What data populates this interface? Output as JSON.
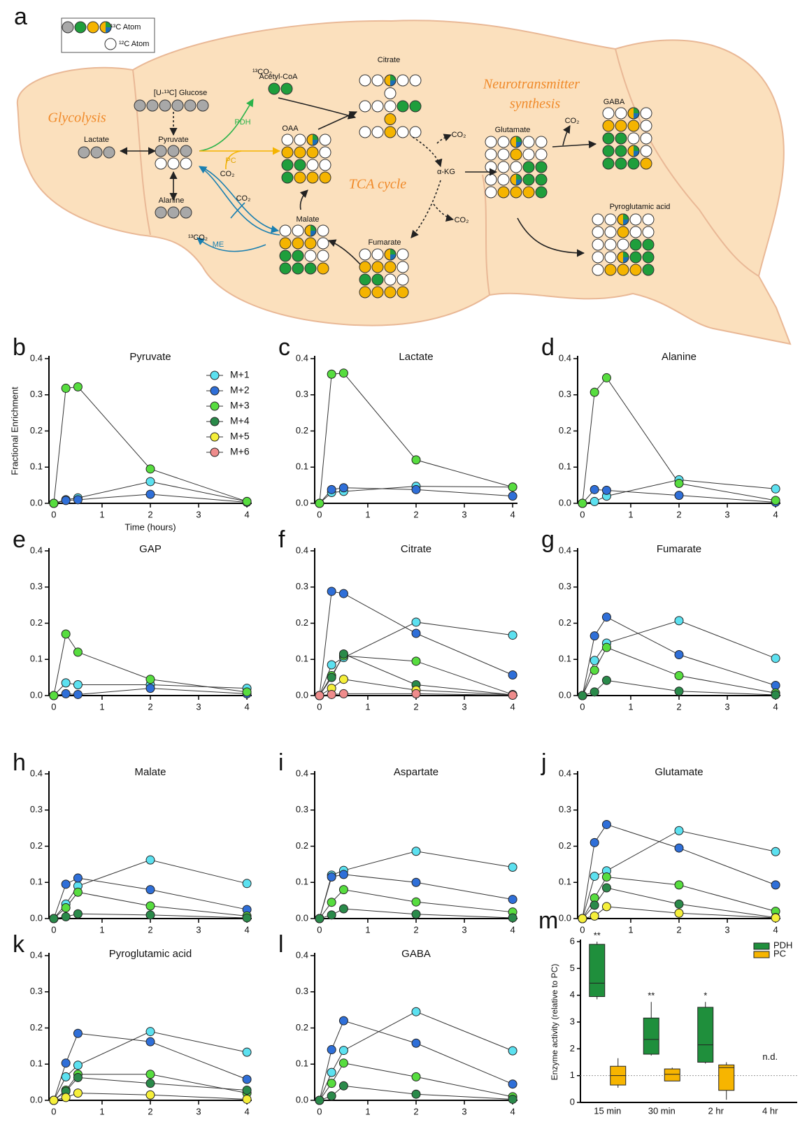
{
  "diagram": {
    "label": "a",
    "legend": {
      "labeled": "¹³C Atom",
      "unlabeled": "¹²C Atom"
    },
    "texts": [
      "Glycolysis",
      "[U-¹³C] Glucose",
      "Lactate",
      "Pyruvate",
      "Alanine",
      "PDH",
      "PC",
      "ME",
      "¹³CO₂",
      "¹³CO₂",
      "CO₂",
      "CO₂",
      "Acetyl-CoA",
      "OAA",
      "Citrate",
      "TCA cycle",
      "α-KG",
      "CO₂",
      "CO₂",
      "Malate",
      "Fumarate",
      "Glutamate",
      "Neurotransmitter",
      "synthesis",
      "CO₂",
      "GABA",
      "Pyroglutamic acid"
    ]
  },
  "chart_data": [
    {
      "type": "line",
      "label": "b",
      "title": "Pyruvate",
      "ylabel": "Fractional Enrichment",
      "xlabel": "Time (hours)",
      "legend": "upper right",
      "x": [
        0,
        0.25,
        0.5,
        2,
        4
      ],
      "xlim": [
        -0.1,
        4.1
      ],
      "xticks": [
        0,
        1,
        2,
        3,
        4
      ],
      "ylim": [
        0,
        0.4
      ],
      "yticks": [
        {
          "value": 0,
          "label": "0.0"
        },
        0.1,
        0.2,
        0.3,
        0.4
      ],
      "series": [
        {
          "name": "M+1",
          "color": "#5ce1f0",
          "values": [
            0,
            0.01,
            0.015,
            0.06,
            0.005
          ]
        },
        {
          "name": "M+2",
          "color": "#2f6fd8",
          "values": [
            0,
            0.008,
            0.01,
            0.025,
            0.003
          ]
        },
        {
          "name": "M+3",
          "color": "#57dd3f",
          "values": [
            0,
            0.318,
            0.322,
            0.095,
            0.005
          ]
        },
        {
          "name": "M+4",
          "color": "#2a8a4a",
          "values": [
            null,
            null,
            null,
            null,
            null
          ]
        },
        {
          "name": "M+5",
          "color": "#f5ef3a",
          "values": [
            null,
            null,
            null,
            null,
            null
          ]
        },
        {
          "name": "M+6",
          "color": "#ef8c8c",
          "values": [
            null,
            null,
            null,
            null,
            null
          ]
        }
      ]
    },
    {
      "type": "line",
      "label": "c",
      "title": "Lactate",
      "x": [
        0,
        0.25,
        0.5,
        2,
        4
      ],
      "xlim": [
        -0.1,
        4.1
      ],
      "xticks": [
        0,
        1,
        2,
        3,
        4
      ],
      "ylim": [
        0,
        0.4
      ],
      "yticks": [
        {
          "value": 0,
          "label": "0.0"
        },
        0.1,
        0.2,
        0.3,
        0.4
      ],
      "series": [
        {
          "name": "M+1",
          "color": "#5ce1f0",
          "values": [
            0,
            0.03,
            0.033,
            0.047,
            0.045
          ]
        },
        {
          "name": "M+2",
          "color": "#2f6fd8",
          "values": [
            0,
            0.038,
            0.043,
            0.038,
            0.02
          ]
        },
        {
          "name": "M+3",
          "color": "#57dd3f",
          "values": [
            0,
            0.357,
            0.36,
            0.12,
            0.045
          ]
        }
      ]
    },
    {
      "type": "line",
      "label": "d",
      "title": "Alanine",
      "x": [
        0,
        0.25,
        0.5,
        2,
        4
      ],
      "xlim": [
        -0.1,
        4.1
      ],
      "xticks": [
        0,
        1,
        2,
        3,
        4
      ],
      "ylim": [
        0,
        0.4
      ],
      "yticks": [
        {
          "value": 0,
          "label": "0.0"
        },
        0.1,
        0.2,
        0.3,
        0.4
      ],
      "series": [
        {
          "name": "M+1",
          "color": "#5ce1f0",
          "values": [
            0,
            0.005,
            0.02,
            0.065,
            0.04
          ]
        },
        {
          "name": "M+2",
          "color": "#2f6fd8",
          "values": [
            0,
            0.038,
            0.036,
            0.022,
            0.003
          ]
        },
        {
          "name": "M+3",
          "color": "#57dd3f",
          "values": [
            0,
            0.307,
            0.347,
            0.055,
            0.008
          ]
        }
      ]
    },
    {
      "type": "line",
      "label": "e",
      "title": "GAP",
      "x": [
        0,
        0.25,
        0.5,
        2,
        4
      ],
      "xlim": [
        -0.1,
        4.1
      ],
      "xticks": [
        0,
        1,
        2,
        3,
        4
      ],
      "ylim": [
        0,
        0.4
      ],
      "yticks": [
        {
          "value": 0,
          "label": "0.0"
        },
        0.1,
        0.2,
        0.3,
        0.4
      ],
      "series": [
        {
          "name": "M+1",
          "color": "#5ce1f0",
          "values": [
            0,
            0.035,
            0.03,
            0.03,
            0.02
          ]
        },
        {
          "name": "M+2",
          "color": "#2f6fd8",
          "values": [
            0,
            0.005,
            0.003,
            0.02,
            0.005
          ]
        },
        {
          "name": "M+3",
          "color": "#57dd3f",
          "values": [
            0,
            0.17,
            0.12,
            0.045,
            0.01
          ]
        }
      ]
    },
    {
      "type": "line",
      "label": "f",
      "title": "Citrate",
      "x": [
        0,
        0.25,
        0.5,
        2,
        4
      ],
      "xlim": [
        -0.1,
        4.1
      ],
      "xticks": [
        0,
        1,
        2,
        3,
        4
      ],
      "ylim": [
        0,
        0.4
      ],
      "yticks": [
        {
          "value": 0,
          "label": "0.0"
        },
        0.1,
        0.2,
        0.3,
        0.4
      ],
      "series": [
        {
          "name": "M+1",
          "color": "#5ce1f0",
          "values": [
            0,
            0.085,
            0.105,
            0.203,
            0.167
          ]
        },
        {
          "name": "M+2",
          "color": "#2f6fd8",
          "values": [
            0,
            0.288,
            0.282,
            0.172,
            0.057
          ]
        },
        {
          "name": "M+3",
          "color": "#57dd3f",
          "values": [
            0,
            0.055,
            0.11,
            0.095,
            0.003
          ]
        },
        {
          "name": "M+4",
          "color": "#2a8a4a",
          "values": [
            0,
            0.05,
            0.115,
            0.03,
            0.002
          ]
        },
        {
          "name": "M+5",
          "color": "#f5ef3a",
          "values": [
            0,
            0.02,
            0.045,
            0.015,
            0.002
          ]
        },
        {
          "name": "M+6",
          "color": "#ef8c8c",
          "values": [
            0,
            0.003,
            0.005,
            0.005,
            0.001
          ]
        }
      ]
    },
    {
      "type": "line",
      "label": "g",
      "title": "Fumarate",
      "x": [
        0,
        0.25,
        0.5,
        2,
        4
      ],
      "xlim": [
        -0.1,
        4.1
      ],
      "xticks": [
        0,
        1,
        2,
        3,
        4
      ],
      "ylim": [
        0,
        0.4
      ],
      "yticks": [
        {
          "value": 0,
          "label": "0.0"
        },
        0.1,
        0.2,
        0.3,
        0.4
      ],
      "series": [
        {
          "name": "M+1",
          "color": "#5ce1f0",
          "values": [
            0,
            0.097,
            0.145,
            0.207,
            0.103
          ]
        },
        {
          "name": "M+2",
          "color": "#2f6fd8",
          "values": [
            0,
            0.165,
            0.217,
            0.113,
            0.028
          ]
        },
        {
          "name": "M+3",
          "color": "#57dd3f",
          "values": [
            0,
            0.07,
            0.133,
            0.055,
            0.007
          ]
        },
        {
          "name": "M+4",
          "color": "#2a8a4a",
          "values": [
            0,
            0.01,
            0.042,
            0.012,
            0.002
          ]
        }
      ]
    },
    {
      "type": "line",
      "label": "h",
      "title": "Malate",
      "x": [
        0,
        0.25,
        0.5,
        2,
        4
      ],
      "xlim": [
        -0.1,
        4.1
      ],
      "xticks": [
        0,
        1,
        2,
        3,
        4
      ],
      "ylim": [
        0,
        0.4
      ],
      "yticks": [
        {
          "value": 0,
          "label": "0.0"
        },
        0.1,
        0.2,
        0.3,
        0.4
      ],
      "series": [
        {
          "name": "M+1",
          "color": "#5ce1f0",
          "values": [
            0,
            0.04,
            0.09,
            0.162,
            0.097
          ]
        },
        {
          "name": "M+2",
          "color": "#2f6fd8",
          "values": [
            0,
            0.095,
            0.112,
            0.08,
            0.025
          ]
        },
        {
          "name": "M+3",
          "color": "#57dd3f",
          "values": [
            0,
            0.03,
            0.073,
            0.035,
            0.007
          ]
        },
        {
          "name": "M+4",
          "color": "#2a8a4a",
          "values": [
            0,
            0.005,
            0.013,
            0.01,
            0.002
          ]
        }
      ]
    },
    {
      "type": "line",
      "label": "i",
      "title": "Aspartate",
      "x": [
        0,
        0.25,
        0.5,
        2,
        4
      ],
      "xlim": [
        -0.1,
        4.1
      ],
      "xticks": [
        0,
        1,
        2,
        3,
        4
      ],
      "ylim": [
        0,
        0.4
      ],
      "yticks": [
        {
          "value": 0,
          "label": "0.0"
        },
        0.1,
        0.2,
        0.3,
        0.4
      ],
      "series": [
        {
          "name": "M+1",
          "color": "#5ce1f0",
          "values": [
            0,
            0.12,
            0.133,
            0.186,
            0.142
          ]
        },
        {
          "name": "M+2",
          "color": "#2f6fd8",
          "values": [
            0,
            0.115,
            0.122,
            0.1,
            0.053
          ]
        },
        {
          "name": "M+3",
          "color": "#57dd3f",
          "values": [
            0,
            0.045,
            0.08,
            0.046,
            0.018
          ]
        },
        {
          "name": "M+4",
          "color": "#2a8a4a",
          "values": [
            0,
            0.01,
            0.027,
            0.012,
            0.002
          ]
        }
      ]
    },
    {
      "type": "line",
      "label": "j",
      "title": "Glutamate",
      "x": [
        0,
        0.25,
        0.5,
        2,
        4
      ],
      "xlim": [
        -0.1,
        4.1
      ],
      "xticks": [
        0,
        1,
        2,
        3,
        4
      ],
      "ylim": [
        0,
        0.4
      ],
      "yticks": [
        {
          "value": 0,
          "label": "0.0"
        },
        0.1,
        0.2,
        0.3,
        0.4
      ],
      "series": [
        {
          "name": "M+1",
          "color": "#5ce1f0",
          "values": [
            0,
            0.117,
            0.132,
            0.243,
            0.185
          ]
        },
        {
          "name": "M+2",
          "color": "#2f6fd8",
          "values": [
            0,
            0.21,
            0.26,
            0.195,
            0.093
          ]
        },
        {
          "name": "M+3",
          "color": "#57dd3f",
          "values": [
            0,
            0.057,
            0.115,
            0.093,
            0.02
          ]
        },
        {
          "name": "M+4",
          "color": "#2a8a4a",
          "values": [
            0,
            0.037,
            0.085,
            0.04,
            0.003
          ]
        },
        {
          "name": "M+5",
          "color": "#f5ef3a",
          "values": [
            0,
            0.007,
            0.033,
            0.015,
            0.002
          ]
        }
      ]
    },
    {
      "type": "line",
      "label": "k",
      "title": "Pyroglutamic acid",
      "x": [
        0,
        0.25,
        0.5,
        2,
        4
      ],
      "xlim": [
        -0.1,
        4.1
      ],
      "xticks": [
        0,
        1,
        2,
        3,
        4
      ],
      "ylim": [
        0,
        0.4
      ],
      "yticks": [
        {
          "value": 0,
          "label": "0.0"
        },
        0.1,
        0.2,
        0.3,
        0.4
      ],
      "series": [
        {
          "name": "M+1",
          "color": "#5ce1f0",
          "values": [
            0,
            0.065,
            0.097,
            0.19,
            0.133
          ]
        },
        {
          "name": "M+2",
          "color": "#2f6fd8",
          "values": [
            0,
            0.103,
            0.185,
            0.162,
            0.058
          ]
        },
        {
          "name": "M+3",
          "color": "#57dd3f",
          "values": [
            0,
            0.028,
            0.072,
            0.072,
            0.02
          ]
        },
        {
          "name": "M+4",
          "color": "#2a8a4a",
          "values": [
            0,
            0.025,
            0.063,
            0.047,
            0.028
          ]
        },
        {
          "name": "M+5",
          "color": "#f5ef3a",
          "values": [
            0,
            0.008,
            0.02,
            0.015,
            0.003
          ]
        }
      ]
    },
    {
      "type": "line",
      "label": "l",
      "title": "GABA",
      "x": [
        0,
        0.25,
        0.5,
        2,
        4
      ],
      "xlim": [
        -0.1,
        4.1
      ],
      "xticks": [
        0,
        1,
        2,
        3,
        4
      ],
      "ylim": [
        0,
        0.4
      ],
      "yticks": [
        {
          "value": 0,
          "label": "0.0"
        },
        0.1,
        0.2,
        0.3,
        0.4
      ],
      "series": [
        {
          "name": "M+1",
          "color": "#5ce1f0",
          "values": [
            0,
            0.077,
            0.138,
            0.245,
            0.137
          ]
        },
        {
          "name": "M+2",
          "color": "#2f6fd8",
          "values": [
            0,
            0.14,
            0.22,
            0.158,
            0.045
          ]
        },
        {
          "name": "M+3",
          "color": "#57dd3f",
          "values": [
            0,
            0.047,
            0.103,
            0.065,
            0.01
          ]
        },
        {
          "name": "M+4",
          "color": "#2a8a4a",
          "values": [
            0,
            0.012,
            0.04,
            0.017,
            0.003
          ]
        }
      ]
    },
    {
      "type": "box",
      "label": "m",
      "ylabel": "Enzyme activity (relative to PC)",
      "legend": "upper right",
      "categories": [
        "15 min",
        "30 min",
        "2 hr",
        "4 hr"
      ],
      "ylim": [
        0,
        6
      ],
      "yticks": [
        0,
        1,
        2,
        3,
        4,
        5,
        6
      ],
      "reference_line": 1,
      "category_annotations": [
        null,
        null,
        null,
        "n.d."
      ],
      "series": [
        {
          "name": "PDH",
          "color": "#1f8f3c",
          "annotations": [
            "**",
            "**",
            "*",
            null
          ],
          "values": [
            {
              "min": 3.85,
              "q1": 3.95,
              "median": 4.45,
              "q3": 5.9,
              "max": 6.0
            },
            {
              "min": 1.75,
              "q1": 1.8,
              "median": 2.35,
              "q3": 3.15,
              "max": 3.75
            },
            {
              "min": 1.45,
              "q1": 1.5,
              "median": 2.15,
              "q3": 3.55,
              "max": 3.75
            },
            null
          ]
        },
        {
          "name": "PC",
          "color": "#f7b500",
          "values": [
            {
              "min": 0.55,
              "q1": 0.65,
              "median": 1.0,
              "q3": 1.35,
              "max": 1.65
            },
            {
              "min": 0.8,
              "q1": 0.8,
              "median": 1.05,
              "q3": 1.25,
              "max": 1.3
            },
            {
              "min": 0.1,
              "q1": 0.45,
              "median": 1.3,
              "q3": 1.4,
              "max": 1.5
            },
            null
          ]
        }
      ]
    }
  ]
}
